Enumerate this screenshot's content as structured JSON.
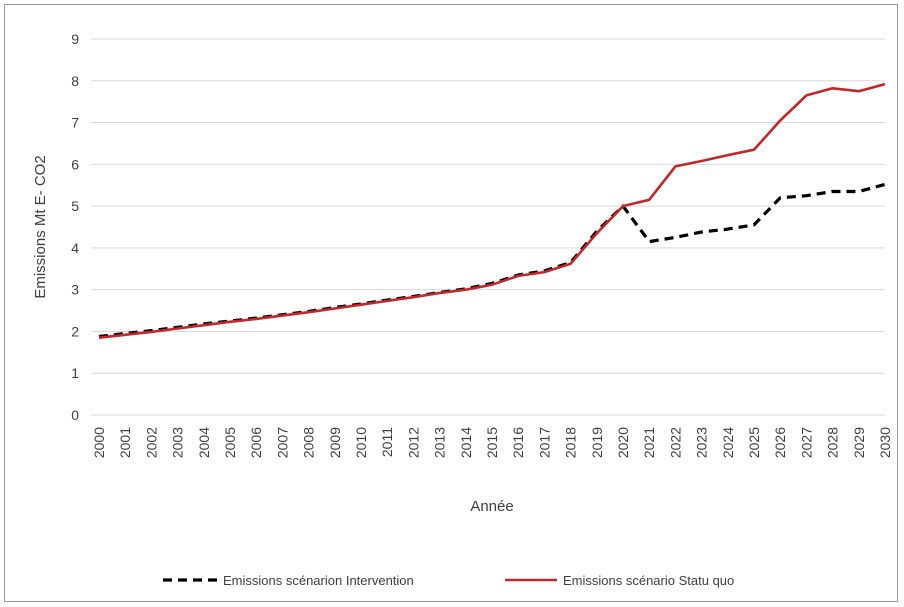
{
  "chart_data": {
    "type": "line",
    "xlabel": "Année",
    "ylabel": "Emissions Mt E- CO2",
    "ylim": [
      0,
      9
    ],
    "yticks": [
      0,
      1,
      2,
      3,
      4,
      5,
      6,
      7,
      8,
      9
    ],
    "grid": "horizontal",
    "legend_position": "bottom",
    "categories": [
      "2000",
      "2001",
      "2002",
      "2003",
      "2004",
      "2005",
      "2006",
      "2007",
      "2008",
      "2009",
      "2010",
      "2011",
      "2012",
      "2013",
      "2014",
      "2015",
      "2016",
      "2017",
      "2018",
      "2019",
      "2020",
      "2021",
      "2022",
      "2023",
      "2024",
      "2025",
      "2026",
      "2027",
      "2028",
      "2029",
      "2030"
    ],
    "series": [
      {
        "name": "Emissions scénarion Intervention",
        "color": "#000000",
        "style": "dashed",
        "values": [
          1.88,
          1.95,
          2.02,
          2.1,
          2.18,
          2.25,
          2.32,
          2.4,
          2.48,
          2.57,
          2.66,
          2.75,
          2.84,
          2.93,
          3.02,
          3.15,
          3.35,
          3.45,
          3.65,
          4.4,
          5.0,
          4.15,
          4.25,
          4.38,
          4.45,
          4.55,
          5.2,
          5.25,
          5.35,
          5.35,
          5.52
        ]
      },
      {
        "name": "Emissions scénario Statu quo",
        "color": "#c0282a",
        "style": "solid",
        "values": [
          1.85,
          1.92,
          1.99,
          2.07,
          2.15,
          2.23,
          2.3,
          2.38,
          2.46,
          2.55,
          2.64,
          2.73,
          2.82,
          2.92,
          3.0,
          3.12,
          3.33,
          3.42,
          3.62,
          4.35,
          5.0,
          5.15,
          5.95,
          6.08,
          6.22,
          6.35,
          7.05,
          7.65,
          7.82,
          7.75,
          7.92
        ]
      }
    ]
  }
}
